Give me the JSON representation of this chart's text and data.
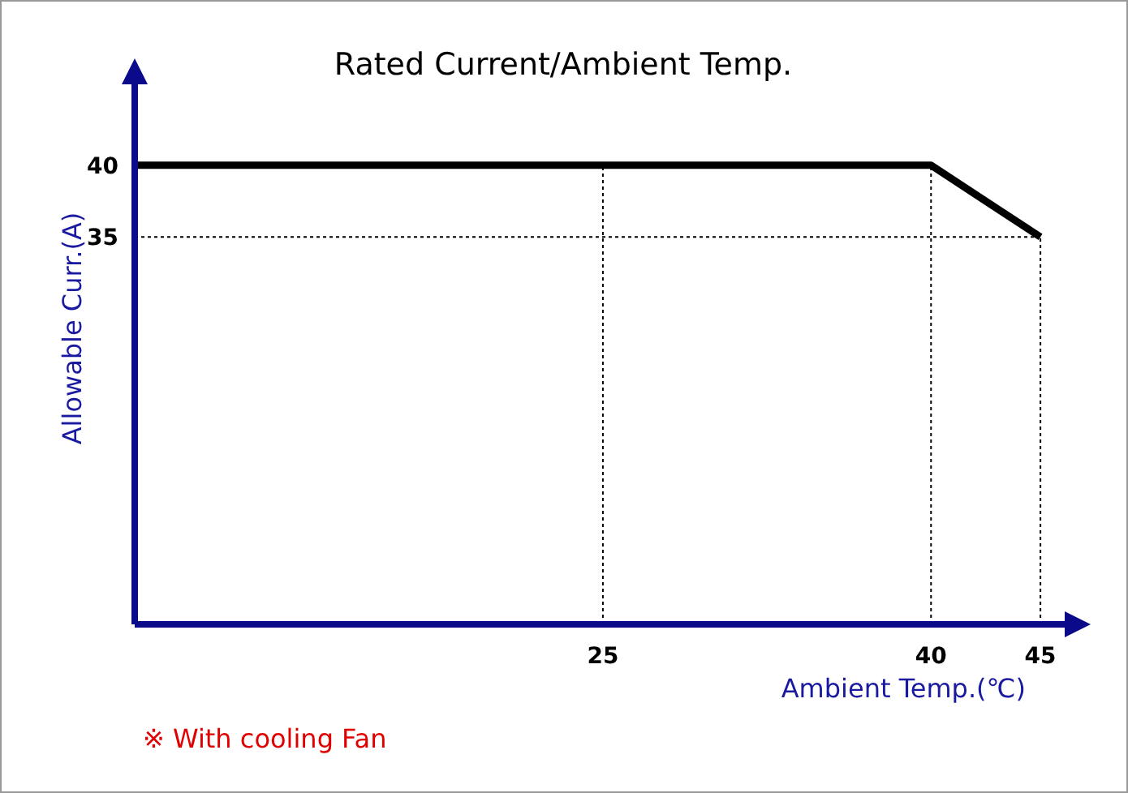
{
  "chart_data": {
    "type": "line",
    "title": "Rated Current/Ambient Temp.",
    "xlabel": "Ambient Temp.(℃)",
    "ylabel": "Allowable Curr.(A)",
    "x": [
      3.6,
      40,
      45
    ],
    "series": [
      {
        "color": "#000000",
        "values": [
          40,
          40,
          35
        ]
      }
    ],
    "xlim": [
      3.6,
      47
    ],
    "ylim": [
      8,
      47
    ],
    "xticks": [
      25,
      40,
      45
    ],
    "yticks": [
      35,
      40
    ],
    "grid": false,
    "marker": "none",
    "line_style": "solid",
    "ref_lines": [
      {
        "axis": "x",
        "value": 25,
        "line_style": "dotted",
        "color": "#000000"
      },
      {
        "axis": "x",
        "value": 40,
        "line_style": "dotted",
        "color": "#000000"
      },
      {
        "axis": "x",
        "value": 45,
        "line_style": "dotted",
        "color": "#000000"
      },
      {
        "axis": "y",
        "value": 35,
        "line_style": "dotted",
        "color": "#000000"
      }
    ],
    "annotations": [
      "※ With cooling Fan"
    ]
  }
}
